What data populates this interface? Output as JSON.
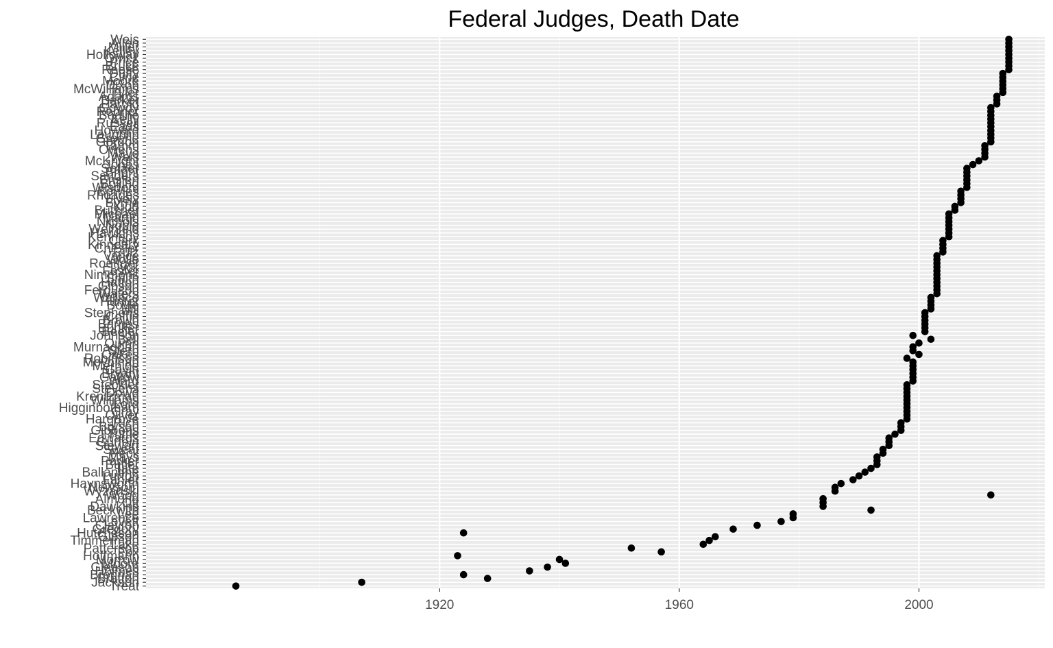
{
  "chart_data": {
    "type": "scatter",
    "title": "Federal Judges, Death Date",
    "xlabel": "",
    "ylabel": "",
    "xlim": [
      1871,
      2021
    ],
    "x_ticks": [
      1920,
      1960,
      2000
    ],
    "x_tick_labels": [
      "1920",
      "1960",
      "2000"
    ],
    "grid": true,
    "legend": "none",
    "colors": {
      "panel": "#ebebeb",
      "grid_major": "#ffffff",
      "grid_minor": "#f4f4f4",
      "point": "#000000",
      "tick_text": "#4d4d4d"
    },
    "categories": [
      "Treat",
      "Jackson",
      "Bratton",
      "Brennan",
      "Holmes",
      "Gleason",
      "Moore",
      "Morrow",
      "Hoffmann",
      "Fox",
      "Patterson",
      "Lake",
      "Timmerman",
      "Gibson",
      "Hutcheson",
      "Gregory",
      "Clayton",
      "Lovett",
      "Lawrence",
      "Lee",
      "Beckwith",
      "Dawkins",
      "Ott",
      "Almond",
      "Wood",
      "Wyzanski",
      "Newsom",
      "Haynsworth",
      "Lanier",
      "Lurton",
      "Ballantine",
      "Tate",
      "Butler",
      "Parker",
      "Mays",
      "Peck",
      "Sweat",
      "Stewart",
      "Gurfein",
      "Edwards",
      "Tuttle",
      "Gibbons",
      "Bryson",
      "Rich",
      "Hargrove",
      "Oliver",
      "Gray",
      "Higginbotham",
      "Lord",
      "Williams",
      "Krentzman",
      "Dowd",
      "Stevens",
      "Steckler",
      "Ward",
      "Gallow",
      "Bryant",
      "Gavin",
      "Merhige",
      "Moynihan",
      "Robinson",
      "Oakes",
      "Stern",
      "Murnaghan",
      "Quinn",
      "Bell",
      "Johnson",
      "Beeler",
      "Bunker",
      "Barnes",
      "Brown",
      "Coffin",
      "Stephens",
      "Hill",
      "Boyle",
      "Hunter",
      "Wallace",
      "Waters",
      "Ferguson",
      "Gibson",
      "Hatton",
      "Smith",
      "Nimmons",
      "Foster",
      "Dyck",
      "Roettger",
      "Wolle",
      "Vance",
      "Ruiz",
      "Chesler",
      "Kinneary",
      "Clark",
      "Kennedy",
      "Hawkins",
      "Weinfeld",
      "Noble",
      "Nichols",
      "Martin",
      "Michael",
      "Butzner",
      "Kidd",
      "Byrne",
      "Lively",
      "Rhoades",
      "Bowles",
      "Wisdom",
      "Bolling",
      "Enslen",
      "Sanders",
      "Bright",
      "Sofaer",
      "Jones",
      "McKnight",
      "Weis",
      "Mayo",
      "Owens",
      "Tamm",
      "Gordon",
      "Greene",
      "Laughlin",
      "Howard",
      "Eads",
      "Russell",
      "Kelly",
      "Bodine",
      "Renner",
      "Gowdy",
      "Harold",
      "Barker",
      "Adams",
      "Tyler",
      "McWilliams",
      "Dixon",
      "Moore",
      "Cline",
      "Duffy",
      "Reese",
      "Bruce",
      "Price",
      "Orrick",
      "Holloway",
      "Kelley",
      "Miller",
      "Allen",
      "Weis"
    ],
    "x": [
      1886,
      1907,
      1928,
      1924,
      1935,
      1938,
      1941,
      1940,
      1923,
      1957,
      1952,
      1964,
      1965,
      1966,
      1924,
      1969,
      1973,
      1977,
      1979,
      1979,
      1992,
      1984,
      1984,
      1984,
      2012,
      1986,
      1986,
      1987,
      1989,
      1990,
      1991,
      1992,
      1993,
      1993,
      1993,
      1994,
      1994,
      1995,
      1995,
      1995,
      1996,
      1997,
      1997,
      1997,
      1998,
      1998,
      1998,
      1998,
      1998,
      1998,
      1998,
      1998,
      1998,
      1998,
      1999,
      1999,
      1999,
      1999,
      1999,
      1999,
      1998,
      2000,
      1999,
      1999,
      2000,
      2002,
      1999,
      2001,
      2001,
      2001,
      2001,
      2001,
      2001,
      2002,
      2002,
      2002,
      2002,
      2003,
      2003,
      2003,
      2003,
      2003,
      2003,
      2003,
      2003,
      2003,
      2003,
      2003,
      2004,
      2004,
      2004,
      2004,
      2005,
      2005,
      2005,
      2005,
      2005,
      2005,
      2005,
      2006,
      2006,
      2007,
      2007,
      2007,
      2007,
      2008,
      2008,
      2008,
      2008,
      2008,
      2008,
      2009,
      2010,
      2011,
      2011,
      2011,
      2011,
      2012,
      2012,
      2012,
      2012,
      2012,
      2012,
      2012,
      2012,
      2012,
      2012,
      2013,
      2013,
      2013,
      2014,
      2014,
      2014,
      2014,
      2014,
      2014,
      2015,
      2015,
      2015,
      2015,
      2015,
      2015,
      2015,
      2015,
      2015
    ]
  }
}
